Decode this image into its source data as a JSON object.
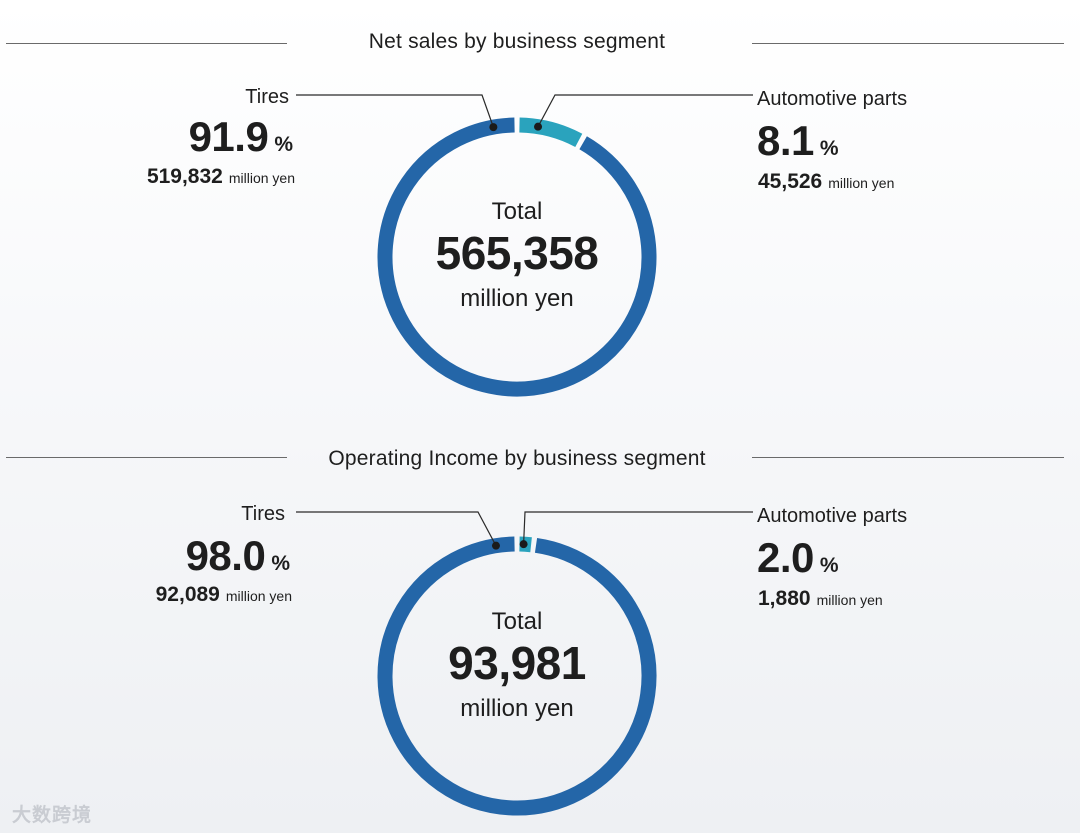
{
  "colors": {
    "tires": "#2466a8",
    "automotive_parts": "#2aa3bd",
    "divider": "#6a6a6a"
  },
  "charts": [
    {
      "title": "Net sales by business segment",
      "center": {
        "label": "Total",
        "value": "565,358",
        "unit": "million yen"
      },
      "segments": [
        {
          "name": "Tires",
          "percent": "91.9",
          "percent_unit": "%",
          "amount": "519,832",
          "amount_unit": "million yen"
        },
        {
          "name": "Automotive parts",
          "percent": "8.1",
          "percent_unit": "%",
          "amount": "45,526",
          "amount_unit": "million yen"
        }
      ]
    },
    {
      "title": "Operating Income by business segment",
      "center": {
        "label": "Total",
        "value": "93,981",
        "unit": "million yen"
      },
      "segments": [
        {
          "name": "Tires",
          "percent": "98.0",
          "percent_unit": "%",
          "amount": "92,089",
          "amount_unit": "million yen"
        },
        {
          "name": "Automotive parts",
          "percent": "2.0",
          "percent_unit": "%",
          "amount": "1,880",
          "amount_unit": "million yen"
        }
      ]
    }
  ],
  "chart_data": [
    {
      "type": "pie",
      "title": "Net sales by business segment",
      "categories": [
        "Tires",
        "Automotive parts"
      ],
      "values": [
        519832,
        45526
      ],
      "percentages": [
        91.9,
        8.1
      ],
      "unit": "million yen",
      "total": 565358
    },
    {
      "type": "pie",
      "title": "Operating Income by business segment",
      "categories": [
        "Tires",
        "Automotive parts"
      ],
      "values": [
        92089,
        1880
      ],
      "percentages": [
        98.0,
        2.0
      ],
      "unit": "million yen",
      "total": 93981
    }
  ],
  "watermark": "大数跨境"
}
